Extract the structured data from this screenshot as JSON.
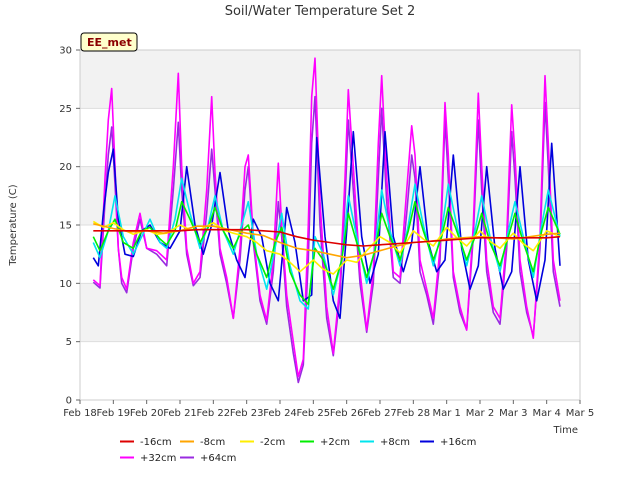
{
  "chart_data": {
    "type": "line",
    "title": "Soil/Water Temperature Set 2",
    "xlabel": "Time",
    "ylabel": "Temperature (C)",
    "ylim": [
      0,
      30
    ],
    "yticks": [
      0,
      5,
      10,
      15,
      20,
      25,
      30
    ],
    "xticks": [
      "Feb 18",
      "Feb 19",
      "Feb 20",
      "Feb 21",
      "Feb 22",
      "Feb 23",
      "Feb 24",
      "Feb 25",
      "Feb 26",
      "Feb 27",
      "Feb 28",
      "Mar 1",
      "Mar 2",
      "Mar 3",
      "Mar 4",
      "Mar 5"
    ],
    "badge": "EE_met",
    "grid": true,
    "legend_position": "bottom",
    "x_start": "2024-02-18",
    "series": [
      {
        "name": "-16cm",
        "color": "#dd0000",
        "x": [
          18.4,
          19.0,
          19.5,
          20.0,
          20.5,
          21.0,
          21.5,
          22.0,
          22.5,
          23.0,
          23.5,
          24.0,
          24.5,
          25.0,
          25.5,
          26.0,
          26.5,
          27.0,
          27.5,
          28.0,
          28.5,
          29.0,
          29.5,
          30.0,
          30.5,
          31.0,
          31.5,
          32.0,
          32.4
        ],
        "y": [
          14.5,
          14.5,
          14.5,
          14.5,
          14.5,
          14.5,
          14.6,
          14.6,
          14.6,
          14.6,
          14.5,
          14.4,
          14.0,
          13.7,
          13.5,
          13.3,
          13.2,
          13.3,
          13.4,
          13.5,
          13.6,
          13.7,
          13.8,
          13.9,
          13.9,
          13.9,
          13.9,
          13.9,
          14.0
        ]
      },
      {
        "name": "+32cm",
        "color": "#ff00ff",
        "x": [
          18.4,
          18.6,
          18.75,
          18.85,
          18.95,
          19.05,
          19.15,
          19.25,
          19.4,
          19.6,
          19.8,
          20.0,
          20.3,
          20.6,
          20.8,
          20.95,
          21.05,
          21.2,
          21.4,
          21.6,
          21.8,
          21.95,
          22.05,
          22.2,
          22.4,
          22.6,
          22.8,
          22.95,
          23.05,
          23.2,
          23.4,
          23.6,
          23.8,
          23.95,
          24.05,
          24.2,
          24.4,
          24.55,
          24.7,
          24.85,
          24.95,
          25.05,
          25.2,
          25.4,
          25.6,
          25.8,
          25.95,
          26.05,
          26.2,
          26.4,
          26.6,
          26.8,
          26.95,
          27.05,
          27.2,
          27.4,
          27.6,
          27.8,
          27.95,
          28.05,
          28.2,
          28.4,
          28.6,
          28.8,
          28.95,
          29.05,
          29.2,
          29.4,
          29.6,
          29.8,
          29.95,
          30.05,
          30.2,
          30.4,
          30.6,
          30.8,
          30.95,
          31.05,
          31.2,
          31.4,
          31.6,
          31.8,
          31.95,
          32.05,
          32.2,
          32.4
        ],
        "y": [
          10.3,
          9.8,
          19.0,
          24.0,
          26.7,
          20.0,
          13.0,
          10.5,
          9.5,
          13.5,
          16.0,
          13.0,
          12.8,
          12.0,
          20.0,
          28.0,
          20.0,
          13.0,
          10.0,
          11.0,
          18.0,
          26.0,
          19.5,
          13.0,
          10.5,
          7.0,
          13.0,
          20.0,
          21.0,
          14.0,
          9.0,
          6.8,
          12.0,
          20.3,
          15.0,
          9.0,
          5.0,
          2.0,
          3.5,
          15.0,
          26.0,
          29.3,
          17.0,
          8.0,
          4.0,
          10.0,
          19.0,
          26.6,
          20.0,
          11.0,
          6.0,
          11.0,
          22.0,
          27.8,
          19.0,
          11.0,
          10.5,
          18.0,
          23.5,
          21.0,
          12.0,
          9.5,
          7.0,
          13.0,
          25.5,
          21.0,
          11.0,
          8.0,
          6.0,
          15.0,
          26.3,
          20.0,
          12.0,
          8.0,
          7.0,
          14.0,
          25.3,
          21.0,
          12.0,
          8.0,
          5.3,
          14.0,
          27.8,
          22.0,
          12.0,
          8.5
        ]
      },
      {
        "name": "+64cm",
        "color": "#9a2be0",
        "x": [
          18.4,
          18.6,
          18.75,
          18.85,
          18.95,
          19.05,
          19.15,
          19.25,
          19.4,
          19.6,
          19.8,
          20.0,
          20.3,
          20.6,
          20.8,
          20.95,
          21.05,
          21.2,
          21.4,
          21.6,
          21.8,
          21.95,
          22.05,
          22.2,
          22.4,
          22.6,
          22.8,
          22.95,
          23.05,
          23.2,
          23.4,
          23.6,
          23.8,
          23.95,
          24.05,
          24.2,
          24.4,
          24.55,
          24.7,
          24.85,
          24.95,
          25.05,
          25.2,
          25.4,
          25.6,
          25.8,
          25.95,
          26.05,
          26.2,
          26.4,
          26.6,
          26.8,
          26.95,
          27.05,
          27.2,
          27.4,
          27.6,
          27.8,
          27.95,
          28.05,
          28.2,
          28.4,
          28.6,
          28.8,
          28.95,
          29.05,
          29.2,
          29.4,
          29.6,
          29.8,
          29.95,
          30.05,
          30.2,
          30.4,
          30.6,
          30.8,
          30.95,
          31.05,
          31.2,
          31.4,
          31.6,
          31.8,
          31.95,
          32.05,
          32.2,
          32.4
        ],
        "y": [
          10.1,
          9.6,
          17.0,
          21.0,
          23.4,
          18.5,
          13.0,
          10.0,
          9.2,
          13.0,
          15.5,
          13.0,
          12.5,
          11.5,
          18.0,
          23.8,
          18.0,
          12.5,
          9.8,
          10.5,
          16.0,
          21.5,
          18.0,
          12.5,
          10.0,
          7.0,
          12.0,
          18.0,
          20.0,
          13.5,
          8.5,
          6.5,
          11.0,
          17.0,
          14.0,
          8.0,
          4.0,
          1.5,
          3.0,
          12.0,
          22.0,
          26.0,
          15.0,
          7.0,
          3.8,
          9.0,
          17.0,
          24.0,
          18.0,
          10.0,
          5.8,
          10.0,
          19.0,
          25.0,
          17.0,
          10.5,
          10.0,
          16.0,
          21.0,
          19.0,
          11.0,
          9.0,
          6.5,
          12.0,
          24.0,
          19.0,
          10.5,
          7.5,
          6.0,
          14.0,
          24.0,
          18.0,
          11.0,
          7.5,
          6.5,
          13.0,
          23.0,
          19.0,
          11.0,
          7.5,
          5.5,
          13.0,
          25.5,
          20.0,
          11.0,
          8.0
        ]
      },
      {
        "name": "-8cm",
        "color": "#ffa500",
        "x": [
          18.4,
          19.0,
          19.5,
          20.0,
          20.5,
          21.0,
          21.5,
          22.0,
          22.5,
          23.0,
          23.5,
          24.0,
          24.5,
          25.0,
          25.5,
          26.0,
          26.5,
          27.0,
          27.5,
          28.0,
          28.5,
          29.0,
          29.5,
          30.0,
          30.5,
          31.0,
          31.5,
          32.0,
          32.4
        ],
        "y": [
          15.1,
          14.7,
          14.4,
          14.5,
          14.3,
          14.5,
          14.9,
          14.9,
          14.6,
          14.3,
          14.1,
          13.5,
          13.0,
          12.8,
          12.5,
          12.2,
          12.4,
          12.8,
          13.2,
          13.5,
          13.6,
          13.8,
          13.9,
          14.0,
          13.9,
          13.8,
          14.0,
          14.2,
          14.3
        ]
      },
      {
        "name": "-2cm",
        "color": "#ffee00",
        "x": [
          18.4,
          18.7,
          19.0,
          19.3,
          19.6,
          20.0,
          20.3,
          20.6,
          21.0,
          21.3,
          21.6,
          22.0,
          22.3,
          22.6,
          23.0,
          23.3,
          23.6,
          24.0,
          24.3,
          24.6,
          25.0,
          25.3,
          25.6,
          26.0,
          26.3,
          26.6,
          27.0,
          27.3,
          27.6,
          28.0,
          28.3,
          28.6,
          29.0,
          29.3,
          29.6,
          30.0,
          30.3,
          30.6,
          31.0,
          31.3,
          31.6,
          32.0,
          32.4
        ],
        "y": [
          15.3,
          14.8,
          15.2,
          14.6,
          14.2,
          14.6,
          14.2,
          14.3,
          15.0,
          14.6,
          14.6,
          15.2,
          14.6,
          14.3,
          14.0,
          13.5,
          12.8,
          12.5,
          11.8,
          11.0,
          12.0,
          11.2,
          10.8,
          12.0,
          11.8,
          12.8,
          14.0,
          13.5,
          12.6,
          14.5,
          13.8,
          13.2,
          14.8,
          13.9,
          13.2,
          14.5,
          13.6,
          13.0,
          14.3,
          13.4,
          12.8,
          14.5,
          14.0
        ]
      },
      {
        "name": "+2cm",
        "color": "#00ee00",
        "x": [
          18.4,
          18.6,
          18.85,
          19.05,
          19.3,
          19.6,
          19.85,
          20.1,
          20.4,
          20.6,
          20.85,
          21.05,
          21.3,
          21.6,
          21.85,
          22.05,
          22.3,
          22.6,
          22.85,
          23.05,
          23.3,
          23.6,
          23.85,
          24.05,
          24.3,
          24.6,
          24.85,
          25.05,
          25.3,
          25.6,
          25.85,
          26.05,
          26.3,
          26.6,
          26.85,
          27.05,
          27.3,
          27.6,
          27.85,
          28.05,
          28.3,
          28.6,
          28.85,
          29.05,
          29.3,
          29.6,
          29.85,
          30.05,
          30.3,
          30.6,
          30.85,
          31.05,
          31.3,
          31.6,
          31.85,
          32.05,
          32.4
        ],
        "y": [
          14.0,
          12.8,
          14.5,
          15.5,
          13.5,
          13.0,
          14.5,
          14.8,
          13.8,
          13.3,
          14.5,
          17.0,
          15.5,
          13.5,
          14.8,
          16.5,
          14.5,
          13.0,
          14.5,
          15.0,
          12.5,
          10.5,
          13.5,
          14.8,
          11.0,
          9.0,
          8.2,
          13.0,
          12.0,
          9.5,
          12.0,
          16.0,
          13.5,
          10.5,
          12.8,
          16.0,
          14.0,
          12.0,
          14.5,
          17.0,
          14.5,
          12.0,
          14.0,
          16.5,
          14.5,
          12.0,
          14.0,
          16.0,
          13.5,
          11.5,
          14.0,
          16.0,
          13.5,
          11.0,
          14.5,
          16.5,
          14.2
        ]
      },
      {
        "name": "+8cm",
        "color": "#00e5ee",
        "x": [
          18.4,
          18.6,
          18.85,
          19.05,
          19.3,
          19.6,
          19.85,
          20.1,
          20.4,
          20.6,
          20.85,
          21.05,
          21.3,
          21.6,
          21.85,
          22.05,
          22.3,
          22.6,
          22.85,
          23.05,
          23.3,
          23.6,
          23.85,
          24.05,
          24.3,
          24.6,
          24.85,
          25.05,
          25.3,
          25.6,
          25.85,
          26.05,
          26.3,
          26.6,
          26.85,
          27.05,
          27.3,
          27.6,
          27.85,
          28.05,
          28.3,
          28.6,
          28.85,
          29.05,
          29.3,
          29.6,
          29.85,
          30.05,
          30.3,
          30.6,
          30.85,
          31.05,
          31.3,
          31.6,
          31.85,
          32.05,
          32.4
        ],
        "y": [
          13.5,
          12.2,
          14.5,
          17.5,
          14.0,
          12.5,
          14.0,
          15.5,
          13.5,
          13.0,
          15.5,
          19.0,
          16.0,
          13.0,
          15.0,
          17.5,
          14.5,
          12.5,
          15.0,
          17.0,
          12.5,
          9.5,
          13.0,
          16.0,
          11.5,
          8.5,
          7.8,
          14.0,
          12.5,
          9.0,
          12.0,
          17.5,
          14.0,
          10.0,
          13.0,
          18.0,
          14.5,
          11.5,
          15.0,
          18.5,
          15.0,
          11.5,
          14.5,
          18.5,
          15.0,
          11.5,
          14.5,
          17.5,
          14.0,
          11.0,
          14.5,
          17.0,
          14.0,
          10.5,
          15.0,
          18.0,
          14.0
        ]
      },
      {
        "name": "+16cm",
        "color": "#0000dd",
        "x": [
          18.4,
          18.55,
          18.7,
          18.85,
          19.0,
          19.15,
          19.35,
          19.6,
          19.85,
          20.1,
          20.4,
          20.7,
          21.0,
          21.2,
          21.45,
          21.7,
          21.95,
          22.2,
          22.45,
          22.7,
          22.95,
          23.2,
          23.45,
          23.7,
          23.95,
          24.2,
          24.45,
          24.7,
          24.95,
          25.1,
          25.35,
          25.6,
          25.8,
          26.0,
          26.2,
          26.45,
          26.7,
          26.95,
          27.15,
          27.4,
          27.7,
          27.95,
          28.2,
          28.45,
          28.7,
          28.95,
          29.2,
          29.45,
          29.7,
          29.95,
          30.2,
          30.45,
          30.7,
          30.95,
          31.2,
          31.45,
          31.7,
          31.95,
          32.15,
          32.4
        ],
        "y": [
          12.2,
          11.5,
          16.0,
          19.5,
          21.5,
          15.5,
          12.5,
          12.3,
          14.5,
          15.0,
          13.5,
          13.0,
          14.5,
          20.0,
          15.0,
          12.5,
          15.0,
          19.5,
          14.5,
          12.0,
          10.5,
          15.5,
          14.0,
          10.0,
          8.5,
          16.5,
          13.5,
          8.5,
          9.0,
          22.5,
          14.0,
          8.5,
          7.0,
          14.5,
          23.0,
          14.0,
          10.0,
          12.5,
          23.0,
          14.0,
          11.0,
          13.5,
          20.0,
          13.5,
          11.0,
          12.0,
          21.0,
          13.0,
          9.5,
          11.5,
          20.0,
          13.0,
          9.5,
          11.0,
          20.0,
          12.0,
          8.5,
          12.0,
          22.0,
          11.5
        ]
      }
    ],
    "legend_order": [
      "-16cm",
      "-8cm",
      "-2cm",
      "+2cm",
      "+8cm",
      "+16cm",
      "+32cm",
      "+64cm"
    ]
  }
}
